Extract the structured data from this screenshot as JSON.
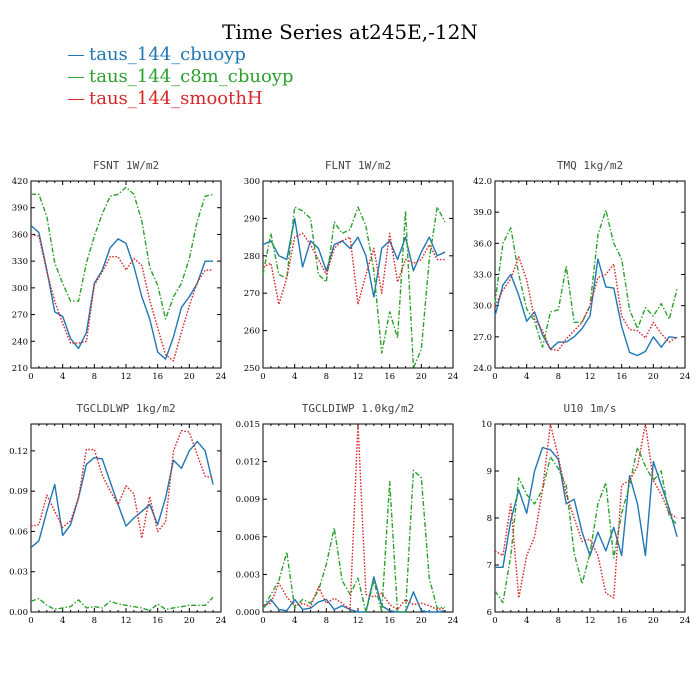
{
  "figure": {
    "title": "Time Series at245E,-12N",
    "legend": [
      {
        "label": "taus_144_cbuoyp",
        "color": "#1f77b4",
        "dash": "solid"
      },
      {
        "label": "taus_144_c8m_cbuoyp",
        "color": "#2ca02c",
        "dash": "dashdot"
      },
      {
        "label": "taus_144_smoothH",
        "color": "#d62728",
        "dash": "dotted"
      }
    ]
  },
  "chart_data": [
    {
      "type": "line",
      "title": "FSNT   1W/m2",
      "xlim": [
        0,
        24
      ],
      "xticks": [
        0,
        4,
        8,
        12,
        16,
        20,
        24
      ],
      "ylim": [
        210,
        420
      ],
      "yticks": [
        210,
        240,
        270,
        300,
        330,
        360,
        390,
        420
      ],
      "ytick_labels": [
        "210",
        "240",
        "270",
        "300",
        "330",
        "360",
        "390",
        "420"
      ],
      "x": [
        0,
        1,
        2,
        3,
        4,
        5,
        6,
        7,
        8,
        9,
        10,
        11,
        12,
        13,
        14,
        15,
        16,
        17,
        18,
        19,
        20,
        21,
        22,
        23
      ],
      "series": [
        {
          "name": "taus_144_cbuoyp",
          "values": [
            370,
            362,
            320,
            273,
            268,
            243,
            232,
            250,
            305,
            320,
            345,
            355,
            350,
            324,
            290,
            265,
            228,
            220,
            245,
            278,
            290,
            305,
            330,
            330
          ]
        },
        {
          "name": "taus_144_c8m_cbuoyp",
          "values": [
            405,
            405,
            380,
            328,
            305,
            285,
            285,
            328,
            358,
            383,
            403,
            405,
            413,
            405,
            375,
            323,
            303,
            265,
            290,
            305,
            333,
            375,
            403,
            405
          ]
        },
        {
          "name": "taus_144_smoothH",
          "values": [
            360,
            358,
            318,
            285,
            260,
            238,
            238,
            240,
            303,
            318,
            335,
            335,
            320,
            333,
            325,
            286,
            255,
            225,
            218,
            250,
            280,
            306,
            320,
            320
          ]
        }
      ]
    },
    {
      "type": "line",
      "title": "FLNT   1W/m2",
      "xlim": [
        0,
        24
      ],
      "xticks": [
        0,
        4,
        8,
        12,
        16,
        20,
        24
      ],
      "ylim": [
        250,
        300
      ],
      "yticks": [
        250,
        260,
        270,
        280,
        290,
        300
      ],
      "ytick_labels": [
        "250",
        "260",
        "270",
        "280",
        "290",
        "300"
      ],
      "x": [
        0,
        1,
        2,
        3,
        4,
        5,
        6,
        7,
        8,
        9,
        10,
        11,
        12,
        13,
        14,
        15,
        16,
        17,
        18,
        19,
        20,
        21,
        22,
        23
      ],
      "series": [
        {
          "name": "taus_144_cbuoyp",
          "values": [
            283,
            284,
            280,
            279,
            290,
            277,
            284,
            282,
            276,
            283,
            284,
            282,
            285,
            280,
            269,
            282,
            284,
            279,
            285,
            276,
            281,
            285,
            280,
            281
          ]
        },
        {
          "name": "taus_144_c8m_cbuoyp",
          "values": [
            275,
            286,
            275,
            274,
            293,
            292,
            290,
            275,
            273,
            289,
            286,
            287,
            293,
            288,
            276,
            254,
            265,
            258,
            292,
            250,
            255,
            279,
            293,
            289
          ]
        },
        {
          "name": "taus_144_smoothH",
          "values": [
            277,
            278,
            267,
            274,
            285,
            286,
            283,
            279,
            275,
            282,
            284,
            285,
            267,
            275,
            282,
            270,
            286,
            273,
            279,
            278,
            279,
            283,
            279,
            279
          ]
        }
      ]
    },
    {
      "type": "line",
      "title": "TMQ   1kg/m2",
      "xlim": [
        0,
        24
      ],
      "xticks": [
        0,
        4,
        8,
        12,
        16,
        20,
        24
      ],
      "ylim": [
        24.0,
        42.0
      ],
      "yticks": [
        24,
        27,
        30,
        33,
        36,
        39,
        42
      ],
      "ytick_labels": [
        "24.0",
        "27.0",
        "30.0",
        "33.0",
        "36.0",
        "39.0",
        "42.0"
      ],
      "x": [
        0,
        1,
        2,
        3,
        4,
        5,
        6,
        7,
        8,
        9,
        10,
        11,
        12,
        13,
        14,
        15,
        16,
        17,
        18,
        19,
        20,
        21,
        22,
        23
      ],
      "series": [
        {
          "name": "taus_144_cbuoyp",
          "values": [
            29.0,
            32.0,
            33.0,
            31.0,
            28.5,
            29.4,
            27.2,
            25.8,
            26.5,
            26.5,
            27.0,
            27.8,
            29.0,
            34.5,
            31.8,
            31.7,
            28.0,
            25.5,
            25.2,
            25.6,
            27.0,
            26.0,
            27.0,
            26.9
          ]
        },
        {
          "name": "taus_144_c8m_cbuoyp",
          "values": [
            30.3,
            36.0,
            37.5,
            33.0,
            29.7,
            28.5,
            26.0,
            29.4,
            29.6,
            33.8,
            28.4,
            28.4,
            30.0,
            36.8,
            39.2,
            36.0,
            34.5,
            29.6,
            27.8,
            29.8,
            29.0,
            30.2,
            28.7,
            31.6
          ]
        },
        {
          "name": "taus_144_smoothH",
          "values": [
            30.0,
            31.5,
            32.6,
            34.7,
            32.5,
            28.7,
            27.6,
            25.8,
            25.7,
            26.8,
            27.6,
            28.4,
            30.0,
            32.7,
            33.0,
            34.0,
            29.0,
            27.7,
            27.6,
            26.9,
            28.4,
            27.3,
            26.5,
            27.0
          ]
        }
      ]
    },
    {
      "type": "line",
      "title": "TGCLDLWP   1kg/m2",
      "xlim": [
        0,
        24
      ],
      "xticks": [
        0,
        4,
        8,
        12,
        16,
        20,
        24
      ],
      "ylim": [
        0.0,
        0.14
      ],
      "yticks": [
        0,
        0.03,
        0.06,
        0.09,
        0.12
      ],
      "ytick_labels": [
        "0.00",
        "0.03",
        "0.06",
        "0.09",
        "0.12"
      ],
      "x": [
        0,
        1,
        2,
        3,
        4,
        5,
        6,
        7,
        8,
        9,
        10,
        11,
        12,
        13,
        14,
        15,
        16,
        17,
        18,
        19,
        20,
        21,
        22,
        23
      ],
      "series": [
        {
          "name": "taus_144_cbuoyp",
          "values": [
            0.048,
            0.053,
            0.075,
            0.095,
            0.057,
            0.065,
            0.085,
            0.11,
            0.115,
            0.114,
            0.097,
            0.08,
            0.064,
            0.07,
            0.075,
            0.08,
            0.065,
            0.085,
            0.113,
            0.107,
            0.12,
            0.127,
            0.12,
            0.095
          ]
        },
        {
          "name": "taus_144_c8m_cbuoyp",
          "values": [
            0.008,
            0.01,
            0.005,
            0.002,
            0.003,
            0.004,
            0.009,
            0.003,
            0.004,
            0.003,
            0.008,
            0.006,
            0.005,
            0.004,
            0.003,
            0.001,
            0.006,
            0.002,
            0.003,
            0.004,
            0.005,
            0.005,
            0.005,
            0.011
          ]
        },
        {
          "name": "taus_144_smoothH",
          "values": [
            0.064,
            0.065,
            0.087,
            0.075,
            0.063,
            0.068,
            0.085,
            0.121,
            0.121,
            0.102,
            0.09,
            0.08,
            0.094,
            0.088,
            0.055,
            0.086,
            0.06,
            0.067,
            0.12,
            0.135,
            0.134,
            0.117,
            0.101,
            0.1
          ]
        }
      ]
    },
    {
      "type": "line",
      "title": "TGCLDIWP   1.0kg/m2",
      "xlim": [
        0,
        24
      ],
      "xticks": [
        0,
        4,
        8,
        12,
        16,
        20,
        24
      ],
      "ylim": [
        0.0,
        0.015
      ],
      "yticks": [
        0,
        0.003,
        0.006,
        0.009,
        0.012,
        0.015
      ],
      "ytick_labels": [
        "0.000",
        "0.003",
        "0.006",
        "0.009",
        "0.012",
        "0.015"
      ],
      "x": [
        0,
        1,
        2,
        3,
        4,
        5,
        6,
        7,
        8,
        9,
        10,
        11,
        12,
        13,
        14,
        15,
        16,
        17,
        18,
        19,
        20,
        21,
        22,
        23
      ],
      "series": [
        {
          "name": "taus_144_cbuoyp",
          "values": [
            0.0003,
            0.001,
            0.0002,
            0.0001,
            0.001,
            0.0002,
            0.0003,
            0.0008,
            0.001,
            0.0002,
            0.0005,
            0.0002,
            0.0,
            0.0,
            0.0028,
            0.0005,
            0.0001,
            0.0,
            0.0,
            0.0016,
            0.0001,
            0.0,
            0.0,
            0.0001
          ]
        },
        {
          "name": "taus_144_c8m_cbuoyp",
          "values": [
            0.0003,
            0.0014,
            0.0025,
            0.0048,
            0.0003,
            0.001,
            0.0007,
            0.0017,
            0.0038,
            0.0067,
            0.0025,
            0.0014,
            0.0027,
            0.0,
            0.0025,
            0.0,
            0.0104,
            0.0,
            0.0,
            0.0113,
            0.0107,
            0.0027,
            0.0003,
            0.0004
          ]
        },
        {
          "name": "taus_144_smoothH",
          "values": [
            0.0005,
            0.0007,
            0.0023,
            0.0012,
            0.0005,
            0.0007,
            0.0004,
            0.002,
            0.0007,
            0.0011,
            0.0007,
            0.0002,
            0.015,
            0.0014,
            0.0012,
            0.0015,
            0.0006,
            0.0002,
            0.001,
            0.0006,
            0.0007,
            0.0005,
            0.0002,
            0.0003
          ]
        }
      ]
    },
    {
      "type": "line",
      "title": "U10   1m/s",
      "xlim": [
        0,
        24
      ],
      "xticks": [
        0,
        4,
        8,
        12,
        16,
        20,
        24
      ],
      "ylim": [
        6,
        10
      ],
      "yticks": [
        6,
        7,
        8,
        9,
        10
      ],
      "ytick_labels": [
        "6",
        "7",
        "8",
        "9",
        "10"
      ],
      "x": [
        0,
        1,
        2,
        3,
        4,
        5,
        6,
        7,
        8,
        9,
        10,
        11,
        12,
        13,
        14,
        15,
        16,
        17,
        18,
        19,
        20,
        21,
        22,
        23
      ],
      "series": [
        {
          "name": "taus_144_cbuoyp",
          "values": [
            6.95,
            6.95,
            7.95,
            8.6,
            8.1,
            9.0,
            9.5,
            9.45,
            9.25,
            8.3,
            8.4,
            7.7,
            7.2,
            7.7,
            7.3,
            7.8,
            7.2,
            8.9,
            8.3,
            7.2,
            9.2,
            8.7,
            8.2,
            7.6
          ]
        },
        {
          "name": "taus_144_c8m_cbuoyp",
          "values": [
            6.45,
            6.2,
            7.2,
            8.85,
            8.5,
            8.3,
            8.6,
            9.3,
            9.05,
            8.7,
            7.25,
            6.6,
            7.25,
            8.3,
            8.75,
            7.15,
            8.1,
            8.7,
            9.5,
            9.1,
            8.8,
            9.0,
            8.05,
            7.85
          ]
        },
        {
          "name": "taus_144_smoothH",
          "values": [
            7.3,
            7.2,
            8.3,
            6.3,
            7.2,
            7.6,
            8.6,
            10.0,
            9.3,
            8.5,
            8.0,
            7.5,
            7.55,
            7.2,
            6.4,
            6.3,
            8.7,
            8.8,
            9.1,
            10.0,
            8.8,
            8.5,
            8.1,
            8.0
          ]
        }
      ]
    }
  ]
}
